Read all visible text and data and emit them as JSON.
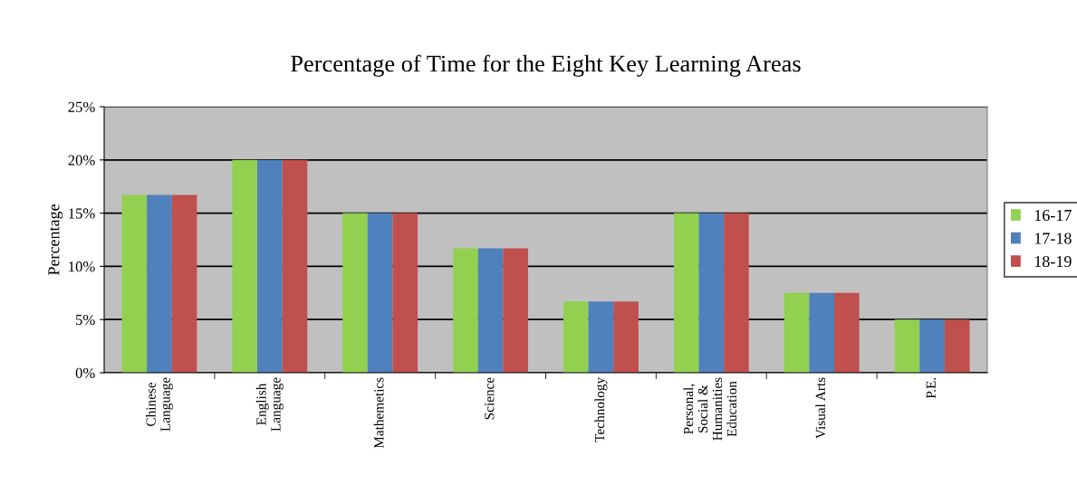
{
  "chart_data": {
    "type": "bar",
    "title": "Percentage of Time for the Eight Key Learning Areas",
    "ylabel": "Percentage",
    "categories": [
      "Chinese\nLanguage",
      "English\nLanguage",
      "Mathemetics",
      "Science",
      "Technology",
      "Personal,\nSocial &\nHumanities\nEducation",
      "Visual Arts",
      "P.E."
    ],
    "series": [
      {
        "name": "16-17",
        "color": "#92d050",
        "values": [
          16.7,
          20,
          15,
          11.7,
          6.7,
          15,
          7.5,
          5
        ]
      },
      {
        "name": "17-18",
        "color": "#4f81bd",
        "values": [
          16.7,
          20,
          15,
          11.7,
          6.7,
          15,
          7.5,
          5
        ]
      },
      {
        "name": "18-19",
        "color": "#c0504d",
        "values": [
          16.7,
          20,
          15,
          11.7,
          6.7,
          15,
          7.5,
          5
        ]
      }
    ],
    "ylim": [
      0,
      25
    ],
    "yticks": [
      {
        "value": 0,
        "label": "0%"
      },
      {
        "value": 5,
        "label": "5%"
      },
      {
        "value": 10,
        "label": "10%"
      },
      {
        "value": 15,
        "label": "15%"
      },
      {
        "value": 20,
        "label": "20%"
      },
      {
        "value": 25,
        "label": "25%"
      }
    ],
    "grid": "y",
    "legend": "right"
  }
}
